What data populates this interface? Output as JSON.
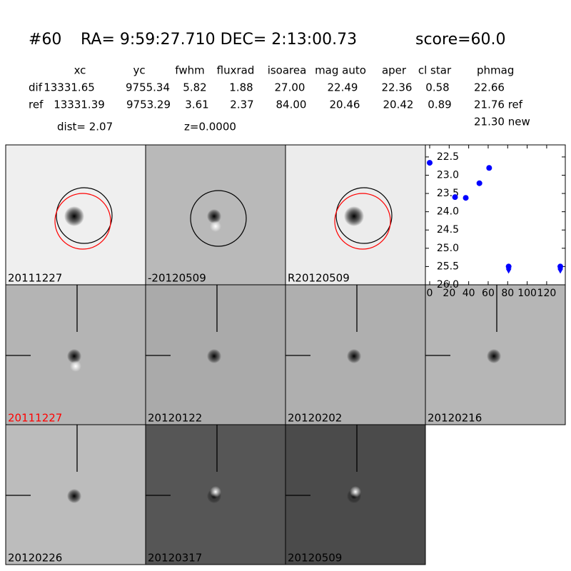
{
  "header": {
    "id": "#60",
    "coords": "RA= 9:59:27.710 DEC= 2:13:00.73",
    "score": "score=60.0"
  },
  "table": {
    "columns": [
      "xc",
      "yc",
      "fwhm",
      "fluxrad",
      "isoarea",
      "mag auto",
      "aper",
      "cl star",
      "phmag"
    ],
    "rows": [
      [
        "dif",
        "13331.65",
        "9755.34",
        "5.82",
        "1.88",
        "27.00",
        "22.49",
        "22.36",
        "0.58",
        "22.66"
      ],
      [
        "ref",
        "13331.39",
        "9753.29",
        "3.61",
        "2.37",
        "84.00",
        "20.46",
        "20.42",
        "0.89",
        "21.76 ref"
      ]
    ],
    "new": "21.30 new"
  },
  "dist": "dist=  2.07",
  "z": "z=0.0000",
  "panels": [
    "20111227",
    "-20120509",
    "R20120509",
    "20111227",
    "20120122",
    "20120202",
    "20120216",
    "20120226",
    "20120317",
    "20120509"
  ],
  "chart_data": {
    "type": "scatter",
    "x": [
      0,
      26,
      37,
      51,
      61,
      81,
      134
    ],
    "values": [
      22.66,
      23.6,
      23.62,
      23.22,
      22.8,
      25.5,
      25.5
    ],
    "errors": [
      0.02,
      0.06,
      0.07,
      0.03,
      0.02,
      0.02,
      0.02
    ],
    "upper_limits": [
      false,
      false,
      false,
      false,
      false,
      true,
      true
    ],
    "color": "#0000ff",
    "xlim": [
      -4.4,
      139.1
    ],
    "ylim": [
      26.0,
      22.17
    ],
    "xticks": [
      0,
      20,
      40,
      60,
      80,
      100,
      120
    ],
    "yticks": [
      22.5,
      {
        "value": 23.0,
        "label": "23.0"
      },
      23.5,
      {
        "value": 24.0,
        "label": "24.0"
      },
      24.5,
      {
        "value": 25.0,
        "label": "25.0"
      },
      25.5,
      {
        "value": 26.0,
        "label": "26.0"
      }
    ]
  }
}
